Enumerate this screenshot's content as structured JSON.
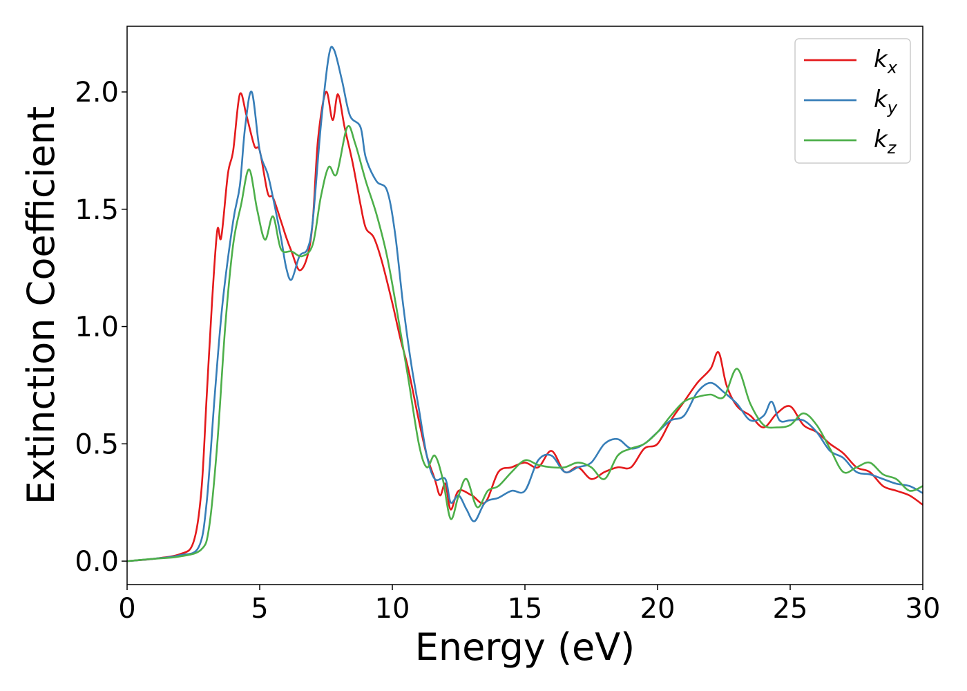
{
  "chart_data": {
    "type": "line",
    "xlabel": "Energy (eV)",
    "ylabel": "Extinction Coefficient",
    "xlim": [
      0,
      30
    ],
    "ylim": [
      -0.1,
      2.28
    ],
    "xticks": [
      0,
      5,
      10,
      15,
      20,
      25,
      30
    ],
    "xtick_labels": [
      "0",
      "5",
      "10",
      "15",
      "20",
      "25",
      "30"
    ],
    "yticks": [
      0.0,
      0.5,
      1.0,
      1.5,
      2.0
    ],
    "ytick_labels": [
      "0.0",
      "0.5",
      "1.0",
      "1.5",
      "2.0"
    ],
    "grid": false,
    "legend_position": "top-right",
    "series": [
      {
        "name": "k_x",
        "label_main": "k",
        "label_sub": "x",
        "color": "#e41a1c",
        "points": [
          [
            0,
            0
          ],
          [
            1,
            0.01
          ],
          [
            2,
            0.03
          ],
          [
            2.5,
            0.08
          ],
          [
            2.8,
            0.3
          ],
          [
            3,
            0.7
          ],
          [
            3.2,
            1.1
          ],
          [
            3.4,
            1.41
          ],
          [
            3.55,
            1.38
          ],
          [
            3.8,
            1.65
          ],
          [
            4,
            1.75
          ],
          [
            4.25,
            1.99
          ],
          [
            4.5,
            1.9
          ],
          [
            4.8,
            1.77
          ],
          [
            5,
            1.75
          ],
          [
            5.3,
            1.57
          ],
          [
            5.5,
            1.55
          ],
          [
            5.8,
            1.45
          ],
          [
            6,
            1.38
          ],
          [
            6.2,
            1.32
          ],
          [
            6.5,
            1.24
          ],
          [
            6.8,
            1.3
          ],
          [
            7,
            1.45
          ],
          [
            7.2,
            1.8
          ],
          [
            7.5,
            2.0
          ],
          [
            7.75,
            1.88
          ],
          [
            7.95,
            1.99
          ],
          [
            8.2,
            1.85
          ],
          [
            8.5,
            1.7
          ],
          [
            8.8,
            1.52
          ],
          [
            9,
            1.42
          ],
          [
            9.3,
            1.38
          ],
          [
            9.6,
            1.28
          ],
          [
            10,
            1.1
          ],
          [
            10.3,
            0.95
          ],
          [
            10.6,
            0.82
          ],
          [
            11,
            0.6
          ],
          [
            11.3,
            0.45
          ],
          [
            11.6,
            0.35
          ],
          [
            11.8,
            0.28
          ],
          [
            12,
            0.33
          ],
          [
            12.2,
            0.22
          ],
          [
            12.5,
            0.3
          ],
          [
            13,
            0.28
          ],
          [
            13.5,
            0.25
          ],
          [
            14,
            0.38
          ],
          [
            14.5,
            0.4
          ],
          [
            15,
            0.42
          ],
          [
            15.5,
            0.4
          ],
          [
            16,
            0.47
          ],
          [
            16.5,
            0.38
          ],
          [
            17,
            0.4
          ],
          [
            17.5,
            0.35
          ],
          [
            18,
            0.38
          ],
          [
            18.5,
            0.4
          ],
          [
            19,
            0.4
          ],
          [
            19.5,
            0.48
          ],
          [
            20,
            0.5
          ],
          [
            20.5,
            0.6
          ],
          [
            21,
            0.68
          ],
          [
            21.5,
            0.76
          ],
          [
            22,
            0.82
          ],
          [
            22.3,
            0.89
          ],
          [
            22.6,
            0.75
          ],
          [
            23,
            0.66
          ],
          [
            23.5,
            0.62
          ],
          [
            24,
            0.57
          ],
          [
            24.5,
            0.63
          ],
          [
            25,
            0.66
          ],
          [
            25.5,
            0.58
          ],
          [
            26,
            0.55
          ],
          [
            26.5,
            0.5
          ],
          [
            27,
            0.46
          ],
          [
            27.5,
            0.4
          ],
          [
            28,
            0.38
          ],
          [
            28.5,
            0.32
          ],
          [
            29,
            0.3
          ],
          [
            29.5,
            0.28
          ],
          [
            30,
            0.24
          ]
        ]
      },
      {
        "name": "k_y",
        "label_main": "k",
        "label_sub": "y",
        "color": "#377eb8",
        "points": [
          [
            0,
            0
          ],
          [
            1,
            0.01
          ],
          [
            2,
            0.025
          ],
          [
            2.7,
            0.06
          ],
          [
            3,
            0.25
          ],
          [
            3.3,
            0.7
          ],
          [
            3.6,
            1.1
          ],
          [
            4,
            1.45
          ],
          [
            4.25,
            1.6
          ],
          [
            4.45,
            1.85
          ],
          [
            4.7,
            2.0
          ],
          [
            5,
            1.75
          ],
          [
            5.3,
            1.65
          ],
          [
            5.5,
            1.55
          ],
          [
            5.8,
            1.38
          ],
          [
            6,
            1.25
          ],
          [
            6.2,
            1.2
          ],
          [
            6.5,
            1.3
          ],
          [
            6.8,
            1.33
          ],
          [
            7,
            1.45
          ],
          [
            7.3,
            1.85
          ],
          [
            7.6,
            2.15
          ],
          [
            7.8,
            2.18
          ],
          [
            8.1,
            2.05
          ],
          [
            8.4,
            1.9
          ],
          [
            8.8,
            1.85
          ],
          [
            9,
            1.72
          ],
          [
            9.4,
            1.62
          ],
          [
            9.8,
            1.58
          ],
          [
            10.1,
            1.4
          ],
          [
            10.4,
            1.1
          ],
          [
            10.7,
            0.85
          ],
          [
            11,
            0.65
          ],
          [
            11.3,
            0.45
          ],
          [
            11.6,
            0.35
          ],
          [
            12,
            0.35
          ],
          [
            12.2,
            0.25
          ],
          [
            12.5,
            0.28
          ],
          [
            12.8,
            0.22
          ],
          [
            13.1,
            0.17
          ],
          [
            13.5,
            0.25
          ],
          [
            14,
            0.27
          ],
          [
            14.5,
            0.3
          ],
          [
            15,
            0.3
          ],
          [
            15.5,
            0.43
          ],
          [
            16,
            0.45
          ],
          [
            16.5,
            0.38
          ],
          [
            17,
            0.4
          ],
          [
            17.5,
            0.42
          ],
          [
            18,
            0.5
          ],
          [
            18.5,
            0.52
          ],
          [
            19,
            0.48
          ],
          [
            19.5,
            0.5
          ],
          [
            20,
            0.55
          ],
          [
            20.5,
            0.6
          ],
          [
            21,
            0.62
          ],
          [
            21.5,
            0.72
          ],
          [
            22,
            0.76
          ],
          [
            22.5,
            0.72
          ],
          [
            23,
            0.67
          ],
          [
            23.5,
            0.6
          ],
          [
            24,
            0.62
          ],
          [
            24.3,
            0.68
          ],
          [
            24.6,
            0.6
          ],
          [
            25,
            0.6
          ],
          [
            25.5,
            0.6
          ],
          [
            26,
            0.55
          ],
          [
            26.5,
            0.47
          ],
          [
            27,
            0.44
          ],
          [
            27.5,
            0.38
          ],
          [
            28,
            0.37
          ],
          [
            28.5,
            0.35
          ],
          [
            29,
            0.33
          ],
          [
            29.5,
            0.32
          ],
          [
            30,
            0.29
          ]
        ]
      },
      {
        "name": "k_z",
        "label_main": "k",
        "label_sub": "z",
        "color": "#4daf4a",
        "points": [
          [
            0,
            0
          ],
          [
            1,
            0.01
          ],
          [
            2,
            0.02
          ],
          [
            2.8,
            0.05
          ],
          [
            3.1,
            0.15
          ],
          [
            3.4,
            0.5
          ],
          [
            3.7,
            1.0
          ],
          [
            4,
            1.35
          ],
          [
            4.3,
            1.52
          ],
          [
            4.6,
            1.67
          ],
          [
            4.9,
            1.5
          ],
          [
            5.2,
            1.37
          ],
          [
            5.5,
            1.47
          ],
          [
            5.8,
            1.33
          ],
          [
            6.2,
            1.32
          ],
          [
            6.6,
            1.3
          ],
          [
            7,
            1.35
          ],
          [
            7.3,
            1.55
          ],
          [
            7.6,
            1.68
          ],
          [
            7.9,
            1.65
          ],
          [
            8.3,
            1.85
          ],
          [
            8.6,
            1.78
          ],
          [
            9,
            1.62
          ],
          [
            9.4,
            1.48
          ],
          [
            9.8,
            1.3
          ],
          [
            10.2,
            1.05
          ],
          [
            10.6,
            0.78
          ],
          [
            11,
            0.5
          ],
          [
            11.3,
            0.4
          ],
          [
            11.6,
            0.45
          ],
          [
            11.9,
            0.35
          ],
          [
            12.2,
            0.18
          ],
          [
            12.5,
            0.28
          ],
          [
            12.8,
            0.35
          ],
          [
            13.2,
            0.23
          ],
          [
            13.6,
            0.3
          ],
          [
            14,
            0.32
          ],
          [
            14.5,
            0.38
          ],
          [
            15,
            0.43
          ],
          [
            15.5,
            0.41
          ],
          [
            16,
            0.4
          ],
          [
            16.5,
            0.4
          ],
          [
            17,
            0.42
          ],
          [
            17.5,
            0.4
          ],
          [
            18,
            0.35
          ],
          [
            18.5,
            0.45
          ],
          [
            19,
            0.48
          ],
          [
            19.5,
            0.5
          ],
          [
            20,
            0.55
          ],
          [
            20.5,
            0.62
          ],
          [
            21,
            0.68
          ],
          [
            21.5,
            0.7
          ],
          [
            22,
            0.71
          ],
          [
            22.5,
            0.7
          ],
          [
            23,
            0.82
          ],
          [
            23.5,
            0.67
          ],
          [
            24,
            0.58
          ],
          [
            24.5,
            0.57
          ],
          [
            25,
            0.58
          ],
          [
            25.5,
            0.63
          ],
          [
            26,
            0.58
          ],
          [
            26.5,
            0.48
          ],
          [
            27,
            0.38
          ],
          [
            27.5,
            0.4
          ],
          [
            28,
            0.42
          ],
          [
            28.5,
            0.37
          ],
          [
            29,
            0.35
          ],
          [
            29.5,
            0.3
          ],
          [
            30,
            0.32
          ]
        ]
      }
    ]
  }
}
